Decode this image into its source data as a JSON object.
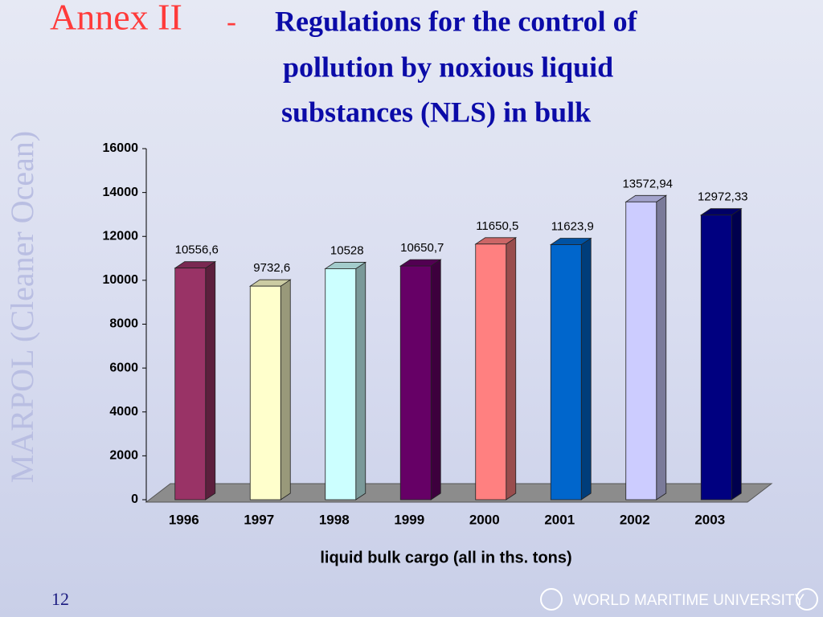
{
  "slide": {
    "annex": "Annex II",
    "dash": "-",
    "title_lines": [
      "Regulations for the control of",
      "pollution by noxious liquid",
      "substances (NLS) in bulk"
    ],
    "side_text": "MARPOL (Cleaner  Ocean)",
    "page_number": "12",
    "logo": "WORLD MARITIME UNIVERSITY"
  },
  "chart_data": {
    "type": "bar3d",
    "categories": [
      "1996",
      "1997",
      "1998",
      "1999",
      "2000",
      "2001",
      "2002",
      "2003"
    ],
    "values": [
      10556.6,
      9732.6,
      10528,
      10650.7,
      11650.5,
      11623.9,
      13572.94,
      12972.33
    ],
    "value_labels": [
      "10556,6",
      "9732,6",
      "10528",
      "10650,7",
      "11650,5",
      "11623,9",
      "13572,94",
      "12972,33"
    ],
    "colors": [
      "#993366",
      "#ffffcc",
      "#ccffff",
      "#660066",
      "#ff8080",
      "#0066cc",
      "#ccccff",
      "#000080"
    ],
    "x_label": "liquid bulk cargo (all in ths. tons)",
    "ylim": [
      0,
      16000
    ],
    "yticks": [
      0,
      2000,
      4000,
      6000,
      8000,
      10000,
      12000,
      14000,
      16000
    ]
  }
}
